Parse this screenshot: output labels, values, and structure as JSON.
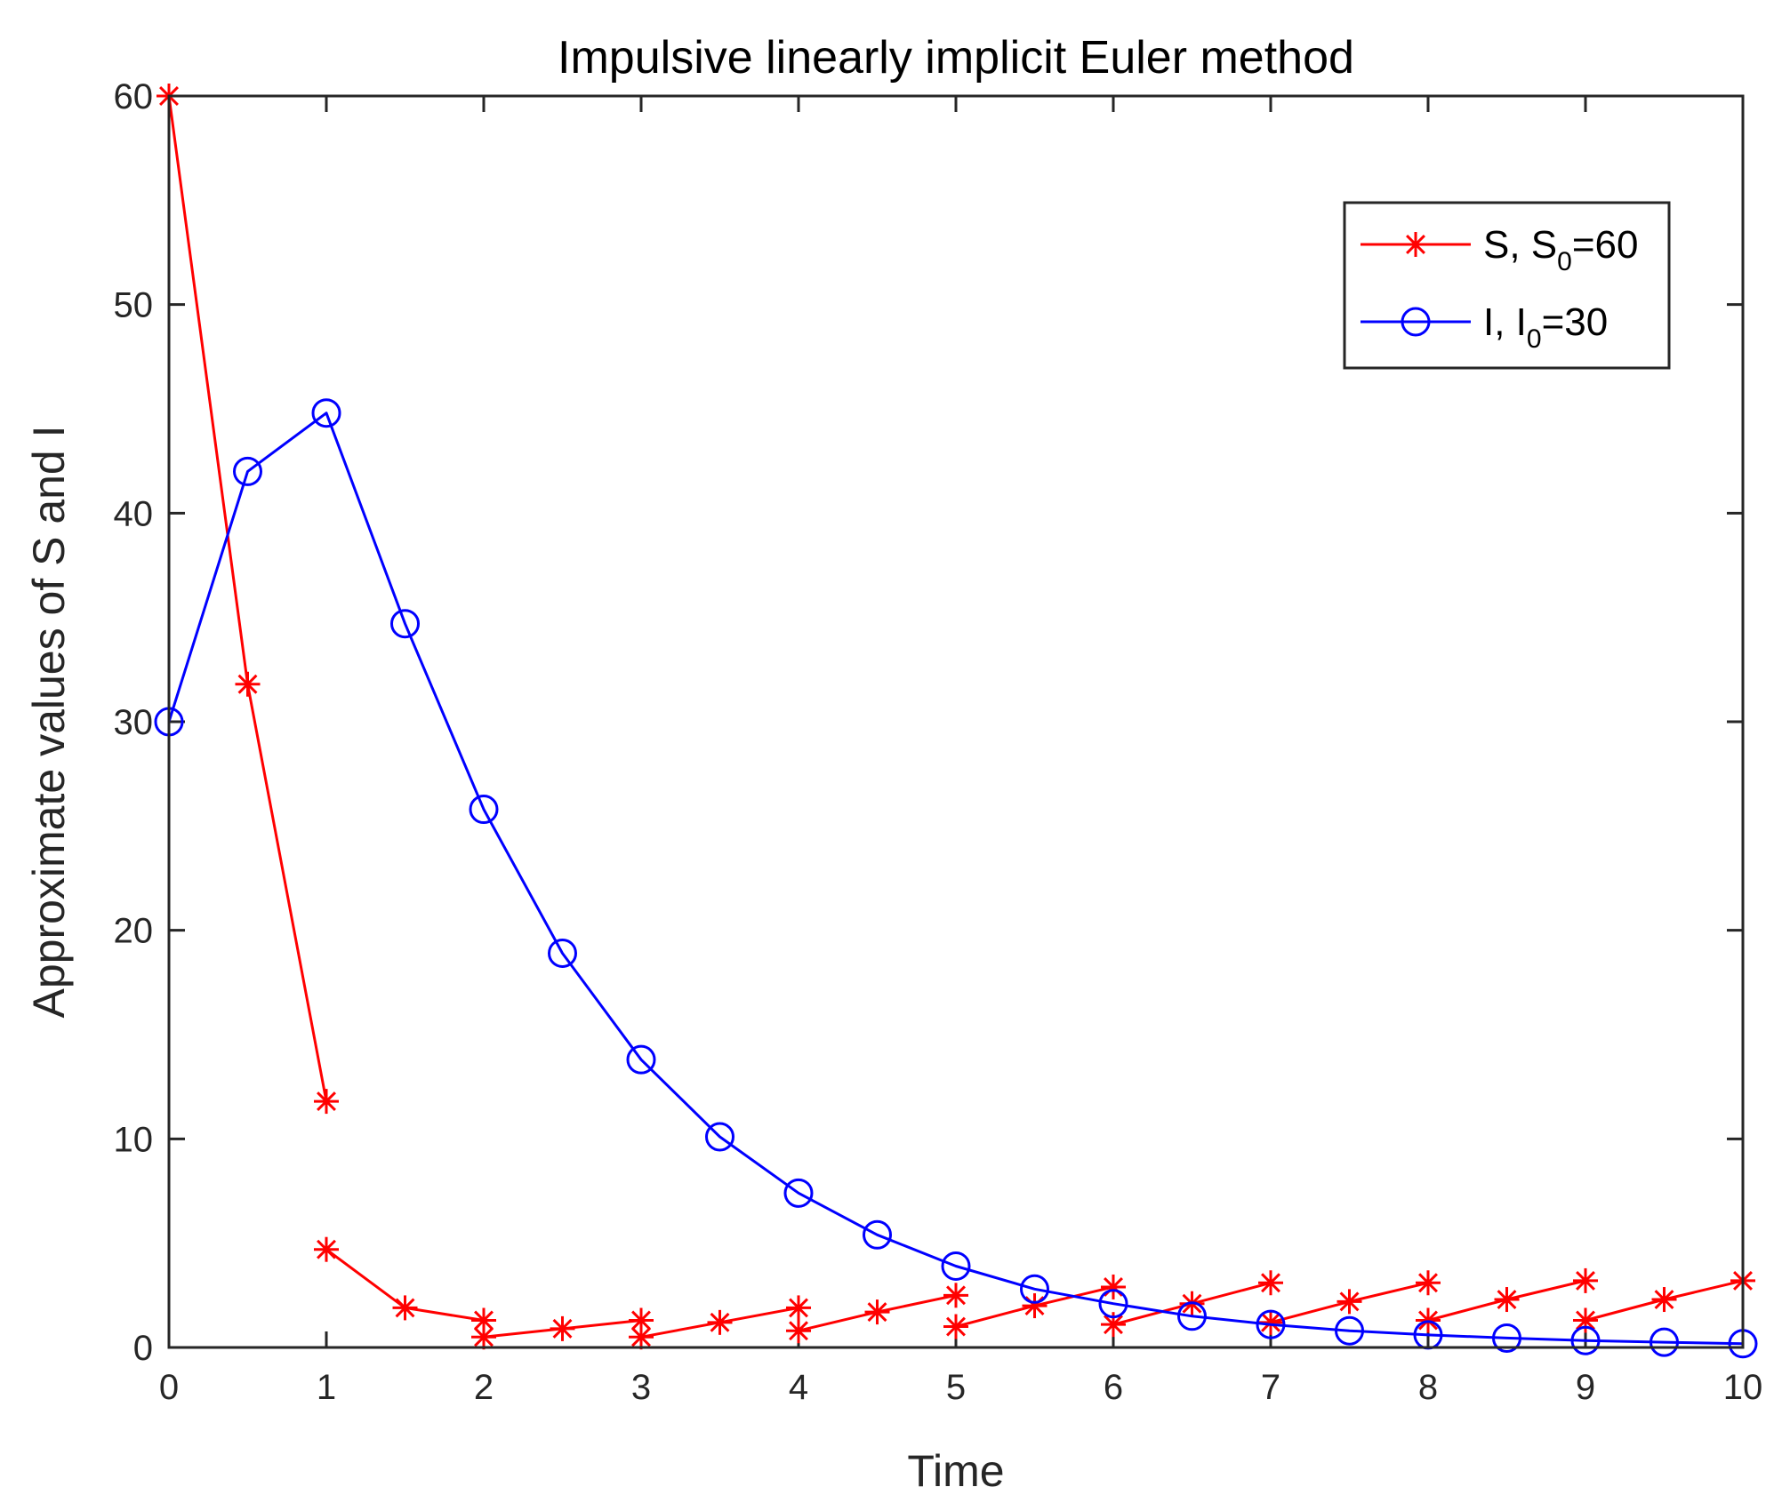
{
  "chart_data": {
    "type": "line",
    "title": "Impulsive linearly implicit Euler method",
    "xlabel": "Time",
    "ylabel": "Approximate values of S and I",
    "xlim": [
      0,
      10
    ],
    "ylim": [
      0,
      60
    ],
    "xticks": [
      0,
      1,
      2,
      3,
      4,
      5,
      6,
      7,
      8,
      9,
      10
    ],
    "yticks": [
      0,
      10,
      20,
      30,
      40,
      50,
      60
    ],
    "grid": false,
    "legend_position": "top-right",
    "series": [
      {
        "name": "S, S0=60",
        "legend_main": "S, S",
        "legend_sub": "0",
        "legend_tail": "=60",
        "color": "#ff0000",
        "marker": "asterisk",
        "segments": [
          [
            [
              0,
              60
            ],
            [
              0.5,
              31.8
            ],
            [
              1,
              11.8
            ]
          ],
          [
            [
              1,
              4.7
            ],
            [
              1.5,
              1.9
            ],
            [
              2,
              1.3
            ]
          ],
          [
            [
              2,
              0.5
            ],
            [
              2.5,
              0.9
            ],
            [
              3,
              1.3
            ]
          ],
          [
            [
              3,
              0.5
            ],
            [
              3.5,
              1.2
            ],
            [
              4,
              1.9
            ]
          ],
          [
            [
              4,
              0.8
            ],
            [
              4.5,
              1.7
            ],
            [
              5,
              2.5
            ]
          ],
          [
            [
              5,
              1.0
            ],
            [
              5.5,
              2.0
            ],
            [
              6,
              2.9
            ]
          ],
          [
            [
              6,
              1.1
            ],
            [
              6.5,
              2.1
            ],
            [
              7,
              3.1
            ]
          ],
          [
            [
              7,
              1.2
            ],
            [
              7.5,
              2.2
            ],
            [
              8,
              3.1
            ]
          ],
          [
            [
              8,
              1.3
            ],
            [
              8.5,
              2.3
            ],
            [
              9,
              3.2
            ]
          ],
          [
            [
              9,
              1.3
            ],
            [
              9.5,
              2.3
            ],
            [
              10,
              3.2
            ]
          ]
        ]
      },
      {
        "name": "I, I0=30",
        "legend_main": "I, I",
        "legend_sub": "0",
        "legend_tail": "=30",
        "color": "#0000ff",
        "marker": "circle",
        "segments": [
          [
            [
              0,
              30
            ],
            [
              0.5,
              42
            ],
            [
              1,
              44.8
            ],
            [
              1.5,
              34.7
            ],
            [
              2,
              25.8
            ],
            [
              2.5,
              18.9
            ],
            [
              3,
              13.8
            ],
            [
              3.5,
              10.1
            ],
            [
              4,
              7.4
            ],
            [
              4.5,
              5.4
            ],
            [
              5,
              3.9
            ],
            [
              5.5,
              2.8
            ],
            [
              6,
              2.1
            ],
            [
              6.5,
              1.5
            ],
            [
              7,
              1.1
            ],
            [
              7.5,
              0.8
            ],
            [
              8,
              0.6
            ],
            [
              8.5,
              0.45
            ],
            [
              9,
              0.33
            ],
            [
              9.5,
              0.25
            ],
            [
              10,
              0.18
            ]
          ]
        ]
      }
    ]
  }
}
